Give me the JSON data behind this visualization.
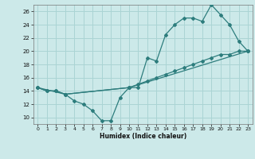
{
  "title": "",
  "xlabel": "Humidex (Indice chaleur)",
  "xlim": [
    -0.5,
    23.5
  ],
  "ylim": [
    9,
    27
  ],
  "yticks": [
    10,
    12,
    14,
    16,
    18,
    20,
    22,
    24,
    26
  ],
  "xticks": [
    0,
    1,
    2,
    3,
    4,
    5,
    6,
    7,
    8,
    9,
    10,
    11,
    12,
    13,
    14,
    15,
    16,
    17,
    18,
    19,
    20,
    21,
    22,
    23
  ],
  "bg_color": "#cce9e9",
  "grid_color": "#aad4d4",
  "line_color": "#2d7d7d",
  "line1_x": [
    0,
    1,
    2,
    3,
    4,
    5,
    6,
    7,
    8,
    9,
    10,
    11,
    12,
    13,
    14,
    15,
    16,
    17,
    18,
    19,
    20,
    21,
    22,
    23
  ],
  "line1_y": [
    14.5,
    14.0,
    14.0,
    13.5,
    12.5,
    12.0,
    11.0,
    9.5,
    9.5,
    13.0,
    14.5,
    14.5,
    19.0,
    18.5,
    22.5,
    24.0,
    25.0,
    25.0,
    24.5,
    27.0,
    25.5,
    24.0,
    21.5,
    20.0
  ],
  "line2_x": [
    0,
    1,
    2,
    3,
    10,
    11,
    12,
    13,
    14,
    15,
    16,
    17,
    18,
    19,
    20,
    21,
    22,
    23
  ],
  "line2_y": [
    14.5,
    14.0,
    14.0,
    13.5,
    14.5,
    15.0,
    15.5,
    16.0,
    16.5,
    17.0,
    17.5,
    18.0,
    18.5,
    19.0,
    19.5,
    19.5,
    20.0,
    20.0
  ],
  "line3_x": [
    0,
    3,
    10,
    23
  ],
  "line3_y": [
    14.5,
    13.5,
    14.5,
    20.0
  ]
}
